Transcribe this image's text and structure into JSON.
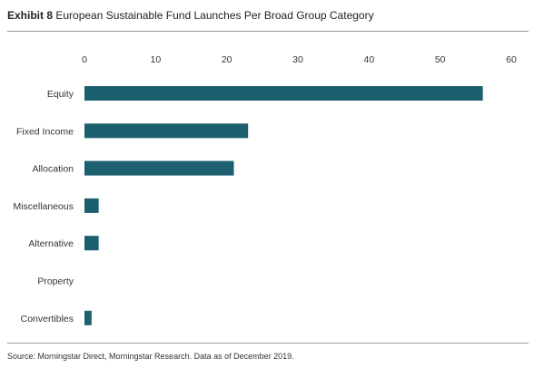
{
  "header": {
    "exhibit_label": "Exhibit 8",
    "title": "European Sustainable Fund Launches Per Broad Group Category"
  },
  "footer": {
    "source": "Source: Morningstar Direct, Morningstar Research. Data as of December 2019."
  },
  "chart_data": {
    "type": "bar",
    "orientation": "horizontal",
    "title": "European Sustainable Fund Launches Per Broad Group Category",
    "categories": [
      "Equity",
      "Fixed Income",
      "Allocation",
      "Miscellaneous",
      "Alternative",
      "Property",
      "Convertibles"
    ],
    "values": [
      56,
      23,
      21,
      2,
      2,
      0,
      1
    ],
    "xlim": [
      0,
      60
    ],
    "xticks": [
      "0",
      "10",
      "20",
      "30",
      "40",
      "50",
      "60"
    ],
    "xaxis_position": "top",
    "grid": false,
    "legend": "none",
    "bar_color": "#1c5f6e"
  }
}
